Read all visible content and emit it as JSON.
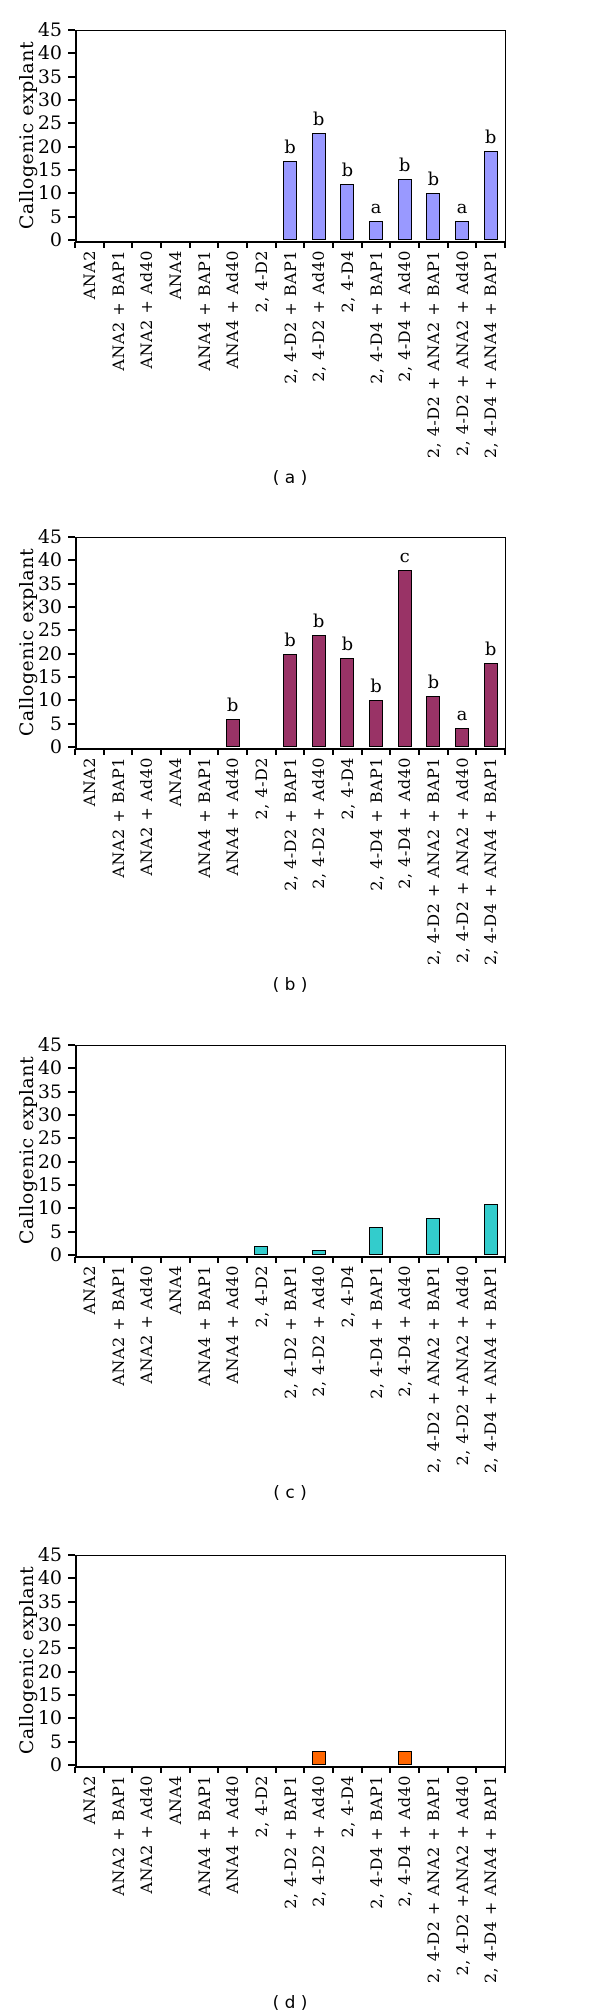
{
  "figure": {
    "background": "#ffffff",
    "axis_color": "#000000",
    "text_color": "#000000"
  },
  "chart_data": [
    {
      "id": "a",
      "type": "bar",
      "caption": "( a )",
      "ylabel": "Callogenic explant",
      "xlabel": "",
      "ylim": [
        0,
        45
      ],
      "ytick_step": 5,
      "grid": false,
      "legend": false,
      "bar_color": "#9999ff",
      "bar_border_color": "#000000",
      "categories": [
        "ANA2",
        "ANA2 + BAP1",
        "ANA2 + Ad40",
        "ANA4",
        "ANA4 + BAP1",
        "ANA4 + Ad40",
        "2, 4-D2",
        "2, 4-D2 + BAP1",
        "2, 4-D2 + Ad40",
        "2, 4-D4",
        "2, 4-D4 + BAP1",
        "2, 4-D4 + Ad40",
        "2, 4-D2 + ANA2 + BAP1",
        "2, 4-D2 + ANA2 + Ad40",
        "2, 4-D4 + ANA4 + BAP1"
      ],
      "values": [
        0,
        0,
        0,
        0,
        0,
        0,
        0,
        17,
        23,
        12,
        4,
        13,
        10,
        4,
        19
      ],
      "annotations": [
        "",
        "",
        "",
        "",
        "",
        "",
        "",
        "b",
        "b",
        "b",
        "a",
        "b",
        "b",
        "a",
        "b"
      ]
    },
    {
      "id": "b",
      "type": "bar",
      "caption": "( b )",
      "ylabel": "Callogenic explant",
      "xlabel": "",
      "ylim": [
        0,
        45
      ],
      "ytick_step": 5,
      "grid": false,
      "legend": false,
      "bar_color": "#993366",
      "bar_border_color": "#000000",
      "categories": [
        "ANA2",
        "ANA2 + BAP1",
        "ANA2 + Ad40",
        "ANA4",
        "ANA4 + BAP1",
        "ANA4 + Ad40",
        "2, 4-D2",
        "2, 4-D2 + BAP1",
        "2, 4-D2 + Ad40",
        "2, 4-D4",
        "2, 4-D4 + BAP1",
        "2, 4-D4 + Ad40",
        "2, 4-D2 + ANA2 + BAP1",
        "2, 4-D2 + ANA2 + Ad40",
        "2, 4-D4 + ANA4 + BAP1"
      ],
      "values": [
        0,
        0,
        0,
        0,
        0,
        6,
        0,
        20,
        24,
        19,
        10,
        38,
        11,
        4,
        18
      ],
      "annotations": [
        "",
        "",
        "",
        "",
        "",
        "b",
        "",
        "b",
        "b",
        "b",
        "b",
        "c",
        "b",
        "a",
        "b"
      ]
    },
    {
      "id": "c",
      "type": "bar",
      "caption": "( c )",
      "ylabel": "Callogenic explant",
      "xlabel": "",
      "ylim": [
        0,
        45
      ],
      "ytick_step": 5,
      "grid": false,
      "legend": false,
      "bar_color": "#33cccc",
      "bar_border_color": "#000000",
      "categories": [
        "ANA2",
        "ANA2 + BAP1",
        "ANA2 + Ad40",
        "ANA4",
        "ANA4 + BAP1",
        "ANA4 + Ad40",
        "2, 4-D2",
        "2, 4-D2 + BAP1",
        "2, 4-D2 + Ad40",
        "2, 4-D4",
        "2, 4-D4 + BAP1",
        "2, 4-D4 + Ad40",
        "2, 4-D2 + ANA2 + BAP1",
        "2, 4-D2 +ANA2 + Ad40",
        "2, 4-D4 + ANA4 + BAP1"
      ],
      "values": [
        0,
        0,
        0,
        0,
        0,
        0,
        2,
        0,
        1,
        0,
        6,
        0,
        8,
        0,
        11
      ],
      "annotations": [
        "",
        "",
        "",
        "",
        "",
        "",
        "",
        "",
        "",
        "",
        "",
        "",
        "",
        "",
        ""
      ]
    },
    {
      "id": "d",
      "type": "bar",
      "caption": "( d )",
      "ylabel": "Callogenic explant",
      "xlabel": "",
      "ylim": [
        0,
        45
      ],
      "ytick_step": 5,
      "grid": false,
      "legend": false,
      "bar_color": "#ff6600",
      "bar_border_color": "#000000",
      "categories": [
        "ANA2",
        "ANA2 + BAP1",
        "ANA2 + Ad40",
        "ANA4",
        "ANA4 + BAP1",
        "ANA4 + Ad40",
        "2, 4-D2",
        "2, 4-D2 + BAP1",
        "2, 4-D2 + Ad40",
        "2, 4-D4",
        "2, 4-D4 + BAP1",
        "2, 4-D4 + Ad40",
        "2, 4-D2 + ANA2 + BAP1",
        "2, 4-D2 +ANA2 + Ad40",
        "2, 4-D4 + ANA4 + BAP1"
      ],
      "values": [
        0,
        0,
        0,
        0,
        0,
        0,
        0,
        0,
        3,
        0,
        0,
        3,
        0,
        0,
        0
      ],
      "annotations": [
        "",
        "",
        "",
        "",
        "",
        "",
        "",
        "",
        "",
        "",
        "",
        "",
        "",
        "",
        ""
      ]
    }
  ]
}
